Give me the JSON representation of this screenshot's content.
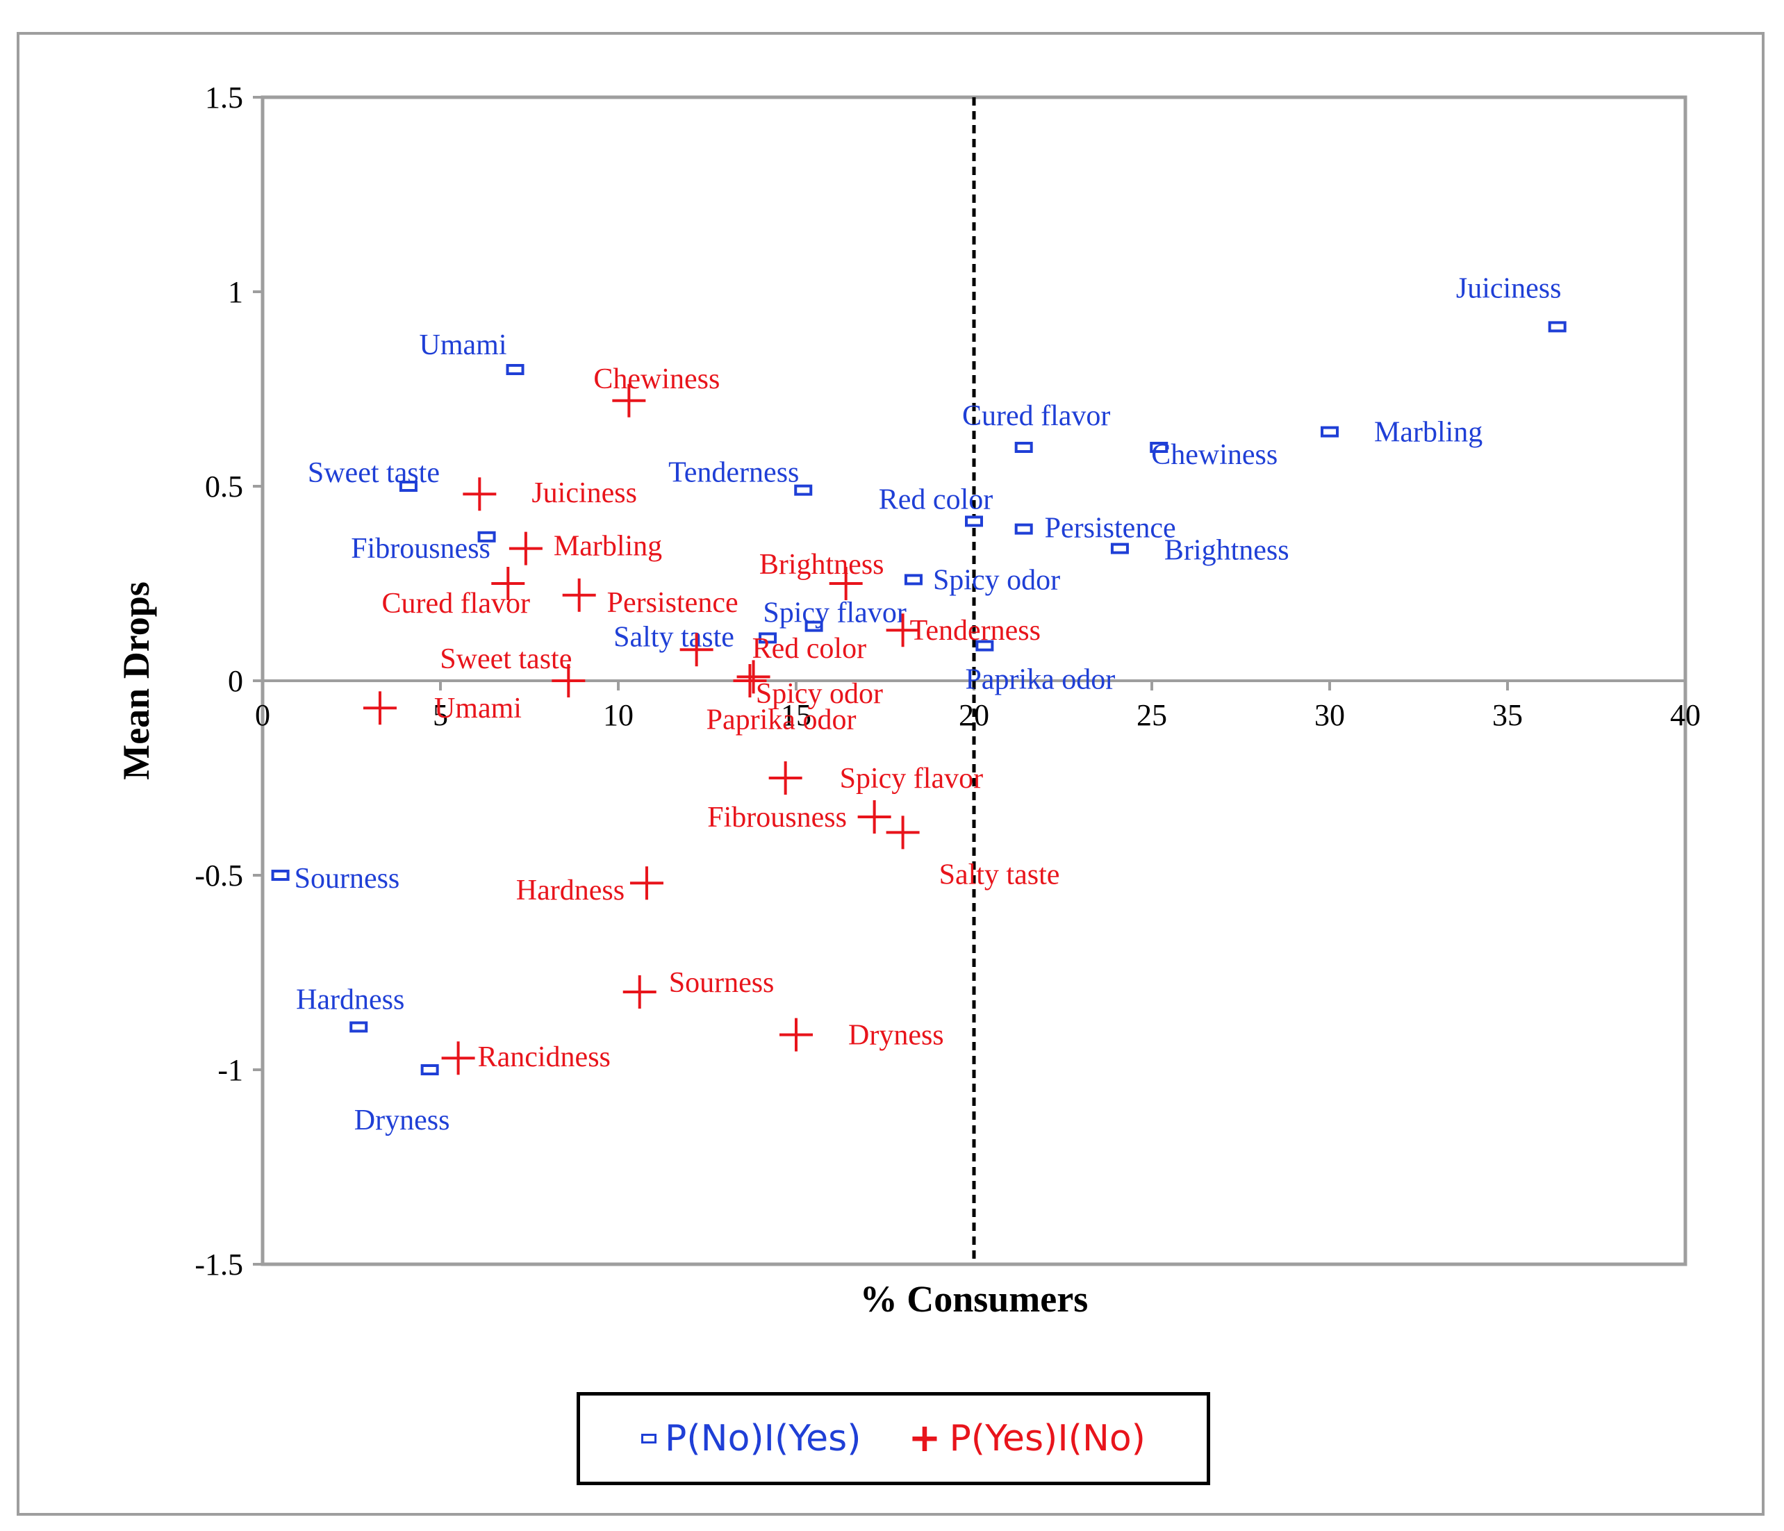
{
  "chart_data": {
    "type": "scatter",
    "title": "",
    "xlabel": "% Consumers",
    "ylabel": "Mean Drops",
    "xlim": [
      0,
      40
    ],
    "ylim": [
      -1.5,
      1.5
    ],
    "x_ticks": [
      "0",
      "5",
      "10",
      "15",
      "20",
      "25",
      "30",
      "35",
      "40"
    ],
    "y_ticks": [
      "1.5",
      "1",
      "0.5",
      "0",
      "-0.5",
      "-1",
      "-1.5"
    ],
    "threshold_x": 20,
    "colors": {
      "no_yes": "#1f3fd6",
      "yes_no": "#e8141b"
    },
    "legend": {
      "position": "bottom",
      "entries": [
        "P(No)I(Yes)",
        "P(Yes)I(No)"
      ]
    },
    "series": [
      {
        "name": "P(No)I(Yes)",
        "marker": "rect",
        "points": [
          {
            "label": "Juiciness",
            "x": 36.4,
            "y": 0.91
          },
          {
            "label": "Umami",
            "x": 7.1,
            "y": 0.8
          },
          {
            "label": "Cured flavor",
            "x": 21.4,
            "y": 0.6
          },
          {
            "label": "Marbling",
            "x": 30.0,
            "y": 0.64
          },
          {
            "label": "Chewiness",
            "x": 25.2,
            "y": 0.6
          },
          {
            "label": "Sweet taste",
            "x": 4.1,
            "y": 0.5
          },
          {
            "label": "Tenderness",
            "x": 15.2,
            "y": 0.49
          },
          {
            "label": "Red color",
            "x": 20.0,
            "y": 0.41
          },
          {
            "label": "Persistence",
            "x": 21.4,
            "y": 0.39
          },
          {
            "label": "Fibrousness",
            "x": 6.3,
            "y": 0.37
          },
          {
            "label": "Brightness",
            "x": 24.1,
            "y": 0.34
          },
          {
            "label": "Spicy odor",
            "x": 18.3,
            "y": 0.26
          },
          {
            "label": "Spicy flavor",
            "x": 15.5,
            "y": 0.14
          },
          {
            "label": "Salty taste",
            "x": 14.2,
            "y": 0.11
          },
          {
            "label": "Paprika odor",
            "x": 20.3,
            "y": 0.09
          },
          {
            "label": "Sourness",
            "x": 0.5,
            "y": -0.5
          },
          {
            "label": "Hardness",
            "x": 2.7,
            "y": -0.89
          },
          {
            "label": "Dryness",
            "x": 4.7,
            "y": -1.0
          }
        ]
      },
      {
        "name": "P(Yes)I(No)",
        "marker": "plus",
        "points": [
          {
            "label": "Chewiness",
            "x": 10.3,
            "y": 0.72
          },
          {
            "label": "Juiciness",
            "x": 6.1,
            "y": 0.48
          },
          {
            "label": "Marbling",
            "x": 7.4,
            "y": 0.34
          },
          {
            "label": "Cured flavor",
            "x": 6.9,
            "y": 0.25
          },
          {
            "label": "Persistence",
            "x": 8.9,
            "y": 0.22
          },
          {
            "label": "Brightness",
            "x": 16.4,
            "y": 0.25
          },
          {
            "label": "Tenderness",
            "x": 18.0,
            "y": 0.13
          },
          {
            "label": "Sweet taste",
            "x": 8.6,
            "y": 0.0
          },
          {
            "label": "Red color",
            "x": 12.2,
            "y": 0.08
          },
          {
            "label": "Spicy odor",
            "x": 13.7,
            "y": 0.0
          },
          {
            "label": "Umami",
            "x": 3.3,
            "y": -0.07
          },
          {
            "label": "Paprika odor",
            "x": 13.8,
            "y": 0.01
          },
          {
            "label": "Spicy flavor",
            "x": 14.7,
            "y": -0.25
          },
          {
            "label": "Fibrousness",
            "x": 17.2,
            "y": -0.35
          },
          {
            "label": "Salty taste",
            "x": 18.0,
            "y": -0.39
          },
          {
            "label": "Hardness",
            "x": 10.8,
            "y": -0.52
          },
          {
            "label": "Sourness",
            "x": 10.6,
            "y": -0.8
          },
          {
            "label": "Dryness",
            "x": 15.0,
            "y": -0.91
          },
          {
            "label": "Rancidness",
            "x": 5.5,
            "y": -0.97
          }
        ]
      }
    ]
  }
}
